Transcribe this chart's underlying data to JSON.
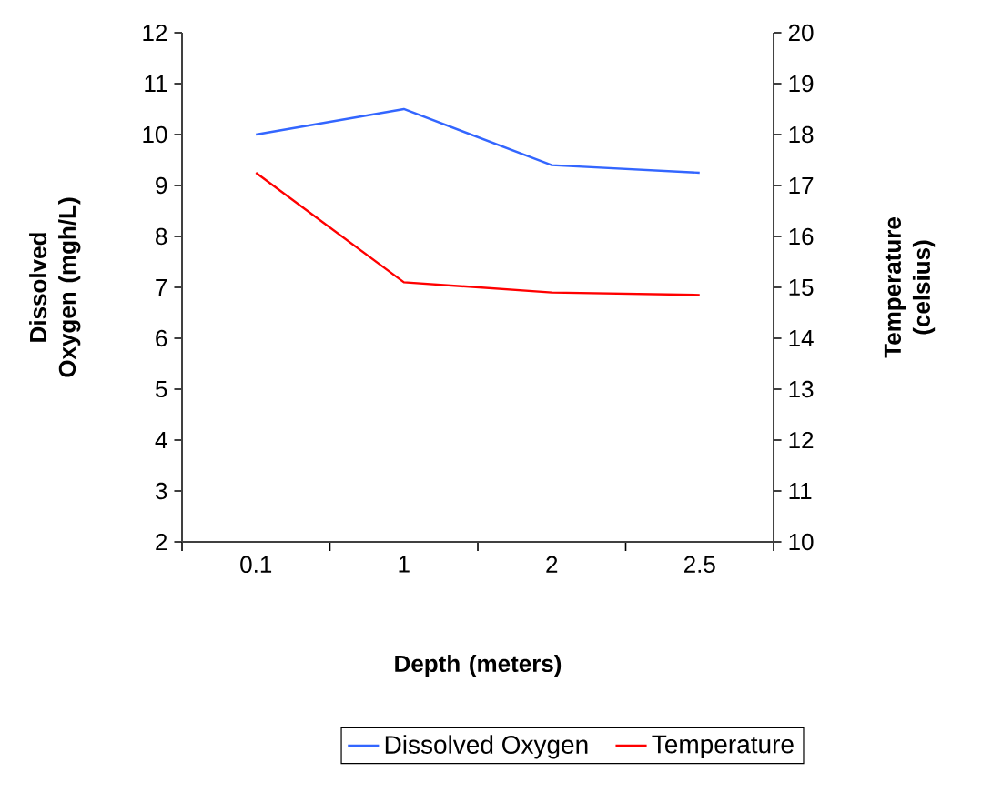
{
  "chart_data": {
    "type": "line",
    "xlabel": "Depth (meters)",
    "ylabel": "Dissolved Oxygen (mgh/L)",
    "y2label": "Temperature (celsius)",
    "categories": [
      "0.1",
      "1",
      "2",
      "2.5"
    ],
    "series": [
      {
        "name": "Dissolved Oxygen",
        "color": "#3366ff",
        "values": [
          10.0,
          10.5,
          9.4,
          9.25
        ]
      },
      {
        "name": "Temperature",
        "color": "#ff0000",
        "axis": "y2",
        "values": [
          17.25,
          15.1,
          14.9,
          14.85
        ]
      }
    ],
    "ylim": [
      2,
      12
    ],
    "yticks": [
      2,
      3,
      4,
      5,
      6,
      7,
      8,
      9,
      10,
      11,
      12
    ],
    "y2lim": [
      10,
      20
    ],
    "y2ticks": [
      10,
      11,
      12,
      13,
      14,
      15,
      16,
      17,
      18,
      19,
      20
    ],
    "legend": "bottom",
    "marker": "none",
    "line_style": "solid",
    "grid": false
  }
}
